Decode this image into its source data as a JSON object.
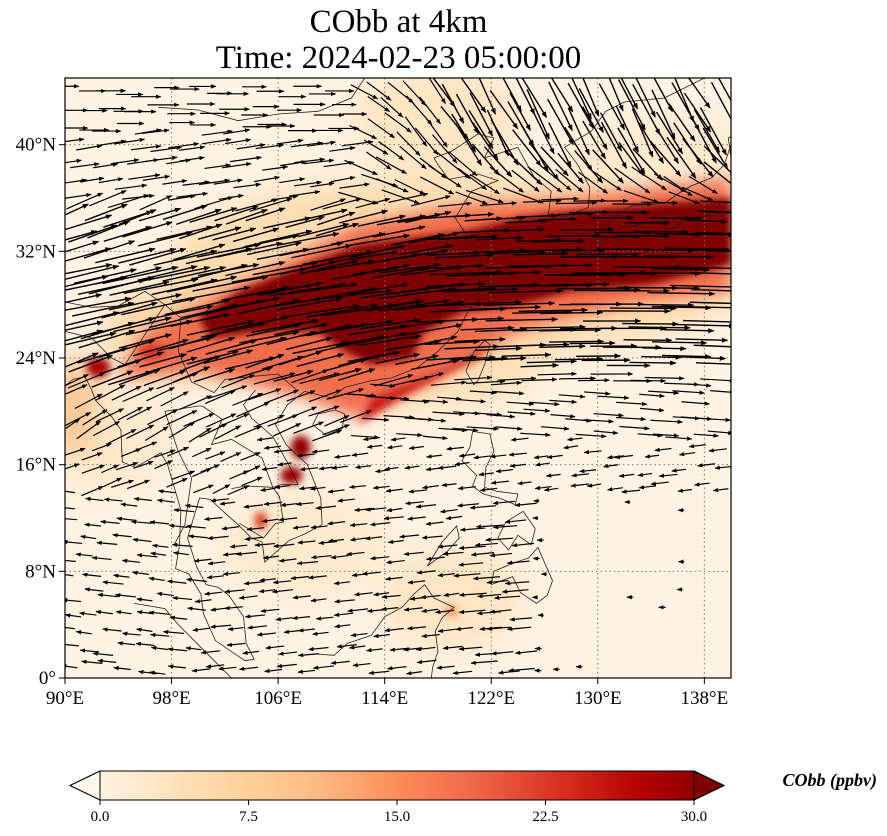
{
  "title": {
    "line1": "CObb at 4km",
    "line2": "Time: 2024-02-23 05:00:00"
  },
  "chart_data": {
    "type": "heatmap",
    "subtype": "map-with-wind-vectors",
    "title": "CObb at 4km",
    "subtitle": "Time: 2024-02-23 05:00:00",
    "variable": "CObb",
    "units": "ppbv",
    "level": "4km",
    "lon_range": [
      90,
      140
    ],
    "lat_range": [
      0,
      45
    ],
    "x_ticks": [
      90,
      98,
      106,
      114,
      122,
      130,
      138
    ],
    "x_tick_labels": [
      "90°E",
      "98°E",
      "106°E",
      "114°E",
      "122°E",
      "130°E",
      "138°E"
    ],
    "y_ticks": [
      0,
      8,
      16,
      24,
      32,
      40
    ],
    "y_tick_labels": [
      "0°",
      "8°N",
      "16°N",
      "24°N",
      "32°N",
      "40°N"
    ],
    "grid": true,
    "colormap": "OrRd",
    "colorbar": {
      "label": "CObb (ppbv)",
      "min": 0.0,
      "max": 30.0,
      "ticks": [
        0.0,
        7.5,
        15.0,
        22.5,
        30.0
      ],
      "tick_labels": [
        "0.0",
        "7.5",
        "15.0",
        "22.5",
        "30.0"
      ],
      "extend": "both",
      "orientation": "horizontal",
      "stops": [
        "#fff7ec",
        "#fee8c8",
        "#fdd49e",
        "#fdbb84",
        "#fc8d59",
        "#ef6548",
        "#d7301f",
        "#b30000",
        "#7f0000"
      ]
    },
    "plume_features": [
      {
        "name": "main-band",
        "lon": [
          100,
          140
        ],
        "lat": [
          24,
          36
        ],
        "value": 30,
        "note": "saturated band from Myanmar/Yunnan across southern China to Japan"
      },
      {
        "name": "northern-vietnam-hotspot",
        "lon": 92.5,
        "lat": 23.5,
        "value": 27
      },
      {
        "name": "laos-hotspot",
        "lon": 107.5,
        "lat": 17,
        "value": 28
      },
      {
        "name": "central-vietnam-hotspot",
        "lon": 107,
        "lat": 15,
        "value": 27
      },
      {
        "name": "cambodia-hotspot",
        "lon": 104.5,
        "lat": 11.5,
        "value": 22
      },
      {
        "name": "borneo-hotspot",
        "lon": 119,
        "lat": 5,
        "value": 14
      }
    ],
    "wind_field": {
      "description": "westerly/southwesterly jet north of 18°N, northwesterly flow over Korea/Japan, easterly trade winds south of 16°N"
    }
  }
}
